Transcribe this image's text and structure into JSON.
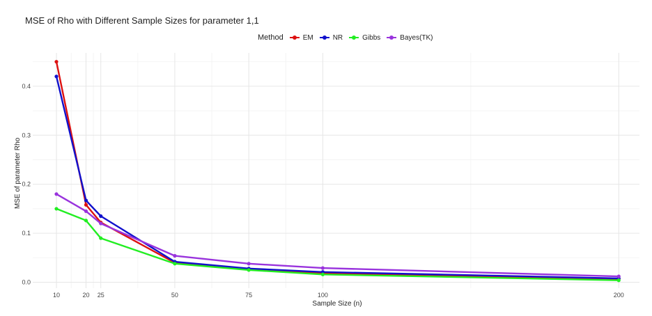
{
  "chart_data": {
    "type": "line",
    "title": "MSE of Rho with Different Sample Sizes for parameter 1,1",
    "xlabel": "Sample Size (n)",
    "ylabel": "MSE of parameter Rho",
    "x": [
      10,
      20,
      25,
      50,
      75,
      100,
      200
    ],
    "x_ticks": [
      10,
      20,
      25,
      50,
      75,
      100,
      200
    ],
    "y_ticks": [
      0.0,
      0.1,
      0.2,
      0.3,
      0.4
    ],
    "y_tick_labels": [
      "0.0",
      "0.1",
      "0.2",
      "0.3",
      "0.4"
    ],
    "xlim": [
      2,
      207
    ],
    "ylim": [
      -0.012,
      0.468
    ],
    "grid": true,
    "legend": {
      "title": "Method",
      "position": "top"
    },
    "series": [
      {
        "name": "EM",
        "color": "#dd1111",
        "values": [
          0.45,
          0.158,
          0.122,
          0.04,
          0.027,
          0.019,
          0.007
        ]
      },
      {
        "name": "NR",
        "color": "#1111cc",
        "values": [
          0.42,
          0.167,
          0.135,
          0.042,
          0.028,
          0.021,
          0.008
        ]
      },
      {
        "name": "Gibbs",
        "color": "#22ee22",
        "values": [
          0.15,
          0.126,
          0.09,
          0.038,
          0.025,
          0.016,
          0.004
        ]
      },
      {
        "name": "Bayes(TK)",
        "color": "#9933dd",
        "values": [
          0.18,
          0.145,
          0.12,
          0.054,
          0.038,
          0.029,
          0.012
        ]
      }
    ]
  }
}
